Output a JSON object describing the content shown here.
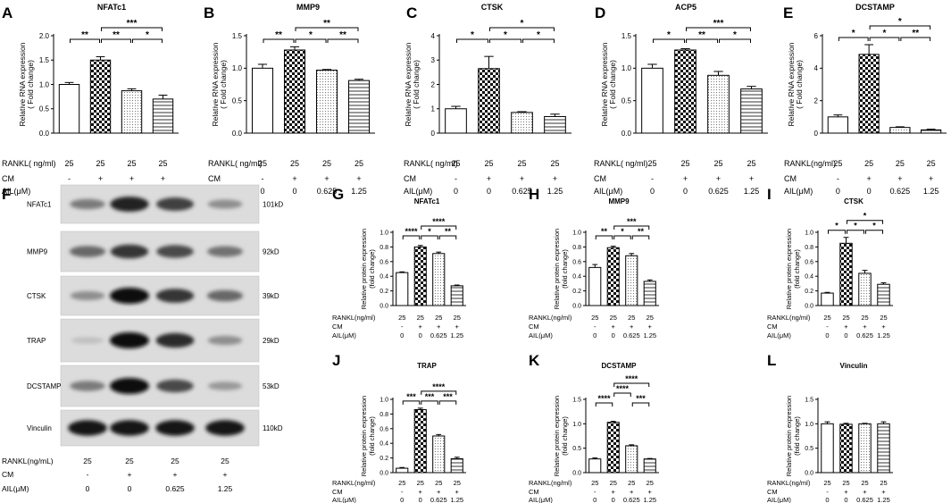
{
  "chart_data": [
    {
      "id": "A",
      "panel_letter": "A",
      "type": "bar",
      "title": "NFATc1",
      "ylabel": "Relative RNA expression",
      "ylabel2": "( Fold change)",
      "ylim": [
        0,
        2.0
      ],
      "yticks": [
        0,
        0.5,
        1.0,
        1.5,
        2.0
      ],
      "ytick_labels": [
        "0.0",
        "0.5",
        "1.0",
        "1.5",
        "2.0"
      ],
      "values": [
        1.0,
        1.5,
        0.87,
        0.7
      ],
      "errors": [
        0.04,
        0.07,
        0.04,
        0.08
      ],
      "sig": [
        {
          "a": 0,
          "b": 1,
          "label": "**",
          "level": 0
        },
        {
          "a": 1,
          "b": 2,
          "label": "**",
          "level": 0
        },
        {
          "a": 2,
          "b": 3,
          "label": "*",
          "level": 0
        },
        {
          "a": 1,
          "b": 3,
          "label": "***",
          "level": 1
        }
      ],
      "row_labels": [
        "RANKL( ng/ml)",
        "CM",
        "AIL(μM)"
      ],
      "rows": [
        [
          "25",
          "25",
          "25",
          "25"
        ],
        [
          "-",
          "+",
          "+",
          "+"
        ],
        [
          "0",
          "0",
          "0.625",
          "1.25"
        ]
      ]
    },
    {
      "id": "B",
      "panel_letter": "B",
      "type": "bar",
      "title": "MMP9",
      "ylabel": "Relative RNA expression",
      "ylabel2": "( Fold change)",
      "ylim": [
        0,
        1.5
      ],
      "yticks": [
        0,
        0.5,
        1.0,
        1.5
      ],
      "ytick_labels": [
        "0.0",
        "0.5",
        "1.0",
        "1.5"
      ],
      "values": [
        1.0,
        1.28,
        0.97,
        0.81
      ],
      "errors": [
        0.06,
        0.05,
        0.01,
        0.02
      ],
      "sig": [
        {
          "a": 0,
          "b": 1,
          "label": "**",
          "level": 0
        },
        {
          "a": 1,
          "b": 2,
          "label": "*",
          "level": 0
        },
        {
          "a": 2,
          "b": 3,
          "label": "**",
          "level": 0
        },
        {
          "a": 1,
          "b": 3,
          "label": "**",
          "level": 1
        }
      ],
      "row_labels": [
        "RANKL( ng/ml)",
        "CM",
        "AIL(μM)"
      ],
      "rows": [
        [
          "25",
          "25",
          "25",
          "25"
        ],
        [
          "-",
          "+",
          "+",
          "+"
        ],
        [
          "0",
          "0",
          "0.625",
          "1.25"
        ]
      ]
    },
    {
      "id": "C",
      "panel_letter": "C",
      "type": "bar",
      "title": "CTSK",
      "ylabel": "Relative RNA expression",
      "ylabel2": "( Fold change)",
      "ylim": [
        0,
        4
      ],
      "yticks": [
        0,
        1,
        2,
        3,
        4
      ],
      "ytick_labels": [
        "0",
        "1",
        "2",
        "3",
        "4"
      ],
      "values": [
        1.0,
        2.65,
        0.85,
        0.68
      ],
      "errors": [
        0.1,
        0.5,
        0.03,
        0.1
      ],
      "sig": [
        {
          "a": 0,
          "b": 1,
          "label": "*",
          "level": 0
        },
        {
          "a": 1,
          "b": 2,
          "label": "*",
          "level": 0
        },
        {
          "a": 2,
          "b": 3,
          "label": "*",
          "level": 0
        },
        {
          "a": 1,
          "b": 3,
          "label": "*",
          "level": 1
        }
      ],
      "row_labels": [
        "RANKL( ng/ml)",
        "CM",
        "AIL(μM)"
      ],
      "rows": [
        [
          "25",
          "25",
          "25",
          "25"
        ],
        [
          "-",
          "+",
          "+",
          "+"
        ],
        [
          "0",
          "0",
          "0.625",
          "1.25"
        ]
      ]
    },
    {
      "id": "D",
      "panel_letter": "D",
      "type": "bar",
      "title": "ACP5",
      "ylabel": "Relative RNA expression",
      "ylabel2": "( Fold change)",
      "ylim": [
        0,
        1.5
      ],
      "yticks": [
        0,
        0.5,
        1.0,
        1.5
      ],
      "ytick_labels": [
        "0.0",
        "0.5",
        "1.0",
        "1.5"
      ],
      "values": [
        1.0,
        1.28,
        0.89,
        0.68
      ],
      "errors": [
        0.06,
        0.02,
        0.06,
        0.04
      ],
      "sig": [
        {
          "a": 0,
          "b": 1,
          "label": "*",
          "level": 0
        },
        {
          "a": 1,
          "b": 2,
          "label": "**",
          "level": 0
        },
        {
          "a": 2,
          "b": 3,
          "label": "*",
          "level": 0
        },
        {
          "a": 1,
          "b": 3,
          "label": "***",
          "level": 1
        }
      ],
      "row_labels": [
        "RANKL(  ng/ml)",
        "CM",
        "AIL(μM)"
      ],
      "rows": [
        [
          "25",
          "25",
          "25",
          "25"
        ],
        [
          "-",
          "+",
          "+",
          "+"
        ],
        [
          "0",
          "0",
          "0.625",
          "1.25"
        ]
      ]
    },
    {
      "id": "E",
      "panel_letter": "E",
      "type": "bar",
      "title": "DCSTAMP",
      "ylabel": "Relative RNA expression",
      "ylabel2": "( Fold change)",
      "ylim": [
        0,
        6
      ],
      "yticks": [
        0,
        2,
        4,
        6
      ],
      "ytick_labels": [
        "0",
        "2",
        "4",
        "6"
      ],
      "values": [
        1.0,
        4.85,
        0.35,
        0.2
      ],
      "errors": [
        0.12,
        0.6,
        0.04,
        0.04
      ],
      "sig": [
        {
          "a": 0,
          "b": 1,
          "label": "*",
          "level": 0
        },
        {
          "a": 1,
          "b": 2,
          "label": "*",
          "level": 0
        },
        {
          "a": 2,
          "b": 3,
          "label": "**",
          "level": 0
        },
        {
          "a": 1,
          "b": 3,
          "label": "*",
          "level": 1
        }
      ],
      "row_labels": [
        "RANKL(ng/ml)",
        "CM",
        "AIL(μM)"
      ],
      "rows": [
        [
          "25",
          "25",
          "25",
          "25"
        ],
        [
          "-",
          "+",
          "+",
          "+"
        ],
        [
          "0",
          "0",
          "0.625",
          "1.25"
        ]
      ]
    },
    {
      "id": "G",
      "panel_letter": "G",
      "type": "bar",
      "title": "NFATc1",
      "ylabel": "Relative protein expression",
      "ylabel2": "(fold change)",
      "ylim": [
        0,
        1.0
      ],
      "yticks": [
        0,
        0.2,
        0.4,
        0.6,
        0.8,
        1.0
      ],
      "ytick_labels": [
        "0.0",
        "0.2",
        "0.4",
        "0.6",
        "0.8",
        "1.0"
      ],
      "values": [
        0.45,
        0.8,
        0.71,
        0.27
      ],
      "errors": [
        0.01,
        0.02,
        0.02,
        0.01
      ],
      "sig": [
        {
          "a": 0,
          "b": 1,
          "label": "****",
          "level": 0
        },
        {
          "a": 1,
          "b": 2,
          "label": "*",
          "level": 0
        },
        {
          "a": 2,
          "b": 3,
          "label": "**",
          "level": 0
        },
        {
          "a": 1,
          "b": 3,
          "label": "****",
          "level": 1
        }
      ],
      "row_labels": [
        "RANKL(ng/ml)",
        "CM",
        "AIL(μM)"
      ],
      "rows": [
        [
          "25",
          "25",
          "25",
          "25"
        ],
        [
          "-",
          "+",
          "+",
          "+"
        ],
        [
          "0",
          "0",
          "0.625",
          "1.25"
        ]
      ]
    },
    {
      "id": "H",
      "panel_letter": "H",
      "type": "bar",
      "title": "MMP9",
      "ylabel": "Relative protein expression",
      "ylabel2": "(fold change)",
      "ylim": [
        0,
        1.0
      ],
      "yticks": [
        0,
        0.2,
        0.4,
        0.6,
        0.8,
        1.0
      ],
      "ytick_labels": [
        "0.0",
        "0.2",
        "0.4",
        "0.6",
        "0.8",
        "1.0"
      ],
      "values": [
        0.52,
        0.79,
        0.68,
        0.33
      ],
      "errors": [
        0.04,
        0.02,
        0.03,
        0.02
      ],
      "sig": [
        {
          "a": 0,
          "b": 1,
          "label": "**",
          "level": 0
        },
        {
          "a": 1,
          "b": 2,
          "label": "*",
          "level": 0
        },
        {
          "a": 2,
          "b": 3,
          "label": "**",
          "level": 0
        },
        {
          "a": 1,
          "b": 3,
          "label": "***",
          "level": 1
        }
      ],
      "row_labels": [
        "RANKL(ng/ml)",
        "CM",
        "AIL(μM)"
      ],
      "rows": [
        [
          "25",
          "25",
          "25",
          "25"
        ],
        [
          "-",
          "+",
          "+",
          "+"
        ],
        [
          "0",
          "0",
          "0.625",
          "1.25"
        ]
      ]
    },
    {
      "id": "I",
      "panel_letter": "I",
      "type": "bar",
      "title": "CTSK",
      "ylabel": "Relative protein expression",
      "ylabel2": "(fold change)",
      "ylim": [
        0,
        1.0
      ],
      "yticks": [
        0,
        0.2,
        0.4,
        0.6,
        0.8,
        1.0
      ],
      "ytick_labels": [
        "0.0",
        "0.2",
        "0.4",
        "0.6",
        "0.8",
        "1.0"
      ],
      "values": [
        0.17,
        0.85,
        0.44,
        0.29
      ],
      "errors": [
        0.01,
        0.08,
        0.04,
        0.02
      ],
      "sig": [
        {
          "a": 0,
          "b": 1,
          "label": "*",
          "level": 0
        },
        {
          "a": 1,
          "b": 2,
          "label": "*",
          "level": 0
        },
        {
          "a": 2,
          "b": 3,
          "label": "*",
          "level": 0
        },
        {
          "a": 1,
          "b": 3,
          "label": "*",
          "level": 1
        }
      ],
      "row_labels": [
        "RANKL(ng/ml)",
        "CM",
        "AIL(μM)"
      ],
      "rows": [
        [
          "25",
          "25",
          "25",
          "25"
        ],
        [
          "-",
          "+",
          "+",
          "+"
        ],
        [
          "0",
          "0",
          "0.625",
          "1.25"
        ]
      ]
    },
    {
      "id": "J",
      "panel_letter": "J",
      "type": "bar",
      "title": "TRAP",
      "ylabel": "Relative protein expression",
      "ylabel2": "(fold change)",
      "ylim": [
        0,
        1.0
      ],
      "yticks": [
        0,
        0.2,
        0.4,
        0.6,
        0.8,
        1.0
      ],
      "ytick_labels": [
        "0.0",
        "0.2",
        "0.4",
        "0.6",
        "0.8",
        "1.0"
      ],
      "values": [
        0.06,
        0.86,
        0.5,
        0.19
      ],
      "errors": [
        0.01,
        0.02,
        0.02,
        0.02
      ],
      "sig": [
        {
          "a": 0,
          "b": 1,
          "label": "***",
          "level": 0
        },
        {
          "a": 1,
          "b": 2,
          "label": "***",
          "level": 0
        },
        {
          "a": 2,
          "b": 3,
          "label": "***",
          "level": 0
        },
        {
          "a": 1,
          "b": 3,
          "label": "****",
          "level": 1
        }
      ],
      "row_labels": [
        "RANKL(ng/ml)",
        "CM",
        "AIL(μM)"
      ],
      "rows": [
        [
          "25",
          "25",
          "25",
          "25"
        ],
        [
          "-",
          "+",
          "+",
          "+"
        ],
        [
          "0",
          "0",
          "0.625",
          "1.25"
        ]
      ]
    },
    {
      "id": "K",
      "panel_letter": "K",
      "type": "bar",
      "title": "DCSTAMP",
      "ylabel": "Relative protein expression",
      "ylabel2": "(fold change)",
      "ylim": [
        0,
        1.5
      ],
      "yticks": [
        0,
        0.5,
        1.0,
        1.5
      ],
      "ytick_labels": [
        "0.0",
        "0.5",
        "1.0",
        "1.5"
      ],
      "values": [
        0.28,
        1.03,
        0.55,
        0.28
      ],
      "errors": [
        0.02,
        0.02,
        0.02,
        0.01
      ],
      "sig": [
        {
          "a": 0,
          "b": 1,
          "label": "****",
          "level": 0
        },
        {
          "a": 2,
          "b": 3,
          "label": "***",
          "level": 0
        },
        {
          "a": 1,
          "b": 2,
          "label": "****",
          "level": 1
        },
        {
          "a": 1,
          "b": 3,
          "label": "****",
          "level": 2
        }
      ],
      "row_labels": [
        "RANKL(ng/ml)",
        "CM",
        "AIL(μM)"
      ],
      "rows": [
        [
          "25",
          "25",
          "25",
          "25"
        ],
        [
          "-",
          "+",
          "+",
          "+"
        ],
        [
          "0",
          "0",
          "0.625",
          "1.25"
        ]
      ]
    },
    {
      "id": "L",
      "panel_letter": "L",
      "type": "bar",
      "title": "Vinculin",
      "ylabel": "Relative protein expression",
      "ylabel2": "(fold change)",
      "ylim": [
        0,
        1.5
      ],
      "yticks": [
        0,
        0.5,
        1.0,
        1.5
      ],
      "ytick_labels": [
        "0.0",
        "0.5",
        "1.0",
        "1.5"
      ],
      "values": [
        1.0,
        0.99,
        1.0,
        1.0
      ],
      "errors": [
        0.04,
        0.02,
        0.01,
        0.04
      ],
      "sig": [],
      "row_labels": [
        "RANKL(ng/ml)",
        "CM",
        "AIL(μM)"
      ],
      "rows": [
        [
          "25",
          "25",
          "25",
          "25"
        ],
        [
          "-",
          "+",
          "+",
          "+"
        ],
        [
          "0",
          "0",
          "0.625",
          "1.25"
        ]
      ]
    }
  ],
  "blot": {
    "panel_letter": "F",
    "proteins": [
      {
        "name": "NFATc1",
        "size": "101kD",
        "intensities": [
          0.45,
          0.9,
          0.75,
          0.35
        ]
      },
      {
        "name": "MMP9",
        "size": "92kD",
        "intensities": [
          0.55,
          0.8,
          0.7,
          0.5
        ]
      },
      {
        "name": "CTSK",
        "size": "39kD",
        "intensities": [
          0.35,
          1.0,
          0.8,
          0.55
        ]
      },
      {
        "name": "TRAP",
        "size": "29kD",
        "intensities": [
          0.1,
          1.0,
          0.85,
          0.35
        ]
      },
      {
        "name": "DCSTAMP",
        "size": "53kD",
        "intensities": [
          0.45,
          1.0,
          0.7,
          0.3
        ]
      },
      {
        "name": "Vinculin",
        "size": "110kD",
        "intensities": [
          0.95,
          0.95,
          0.95,
          0.95
        ]
      }
    ],
    "row_labels": [
      "RANKL(ng/mL)",
      "CM",
      "AIL(μM)"
    ],
    "rows": [
      [
        "25",
        "25",
        "25",
        "25"
      ],
      [
        "-",
        "+",
        "+",
        "+"
      ],
      [
        "0",
        "0",
        "0.625",
        "1.25"
      ]
    ]
  }
}
